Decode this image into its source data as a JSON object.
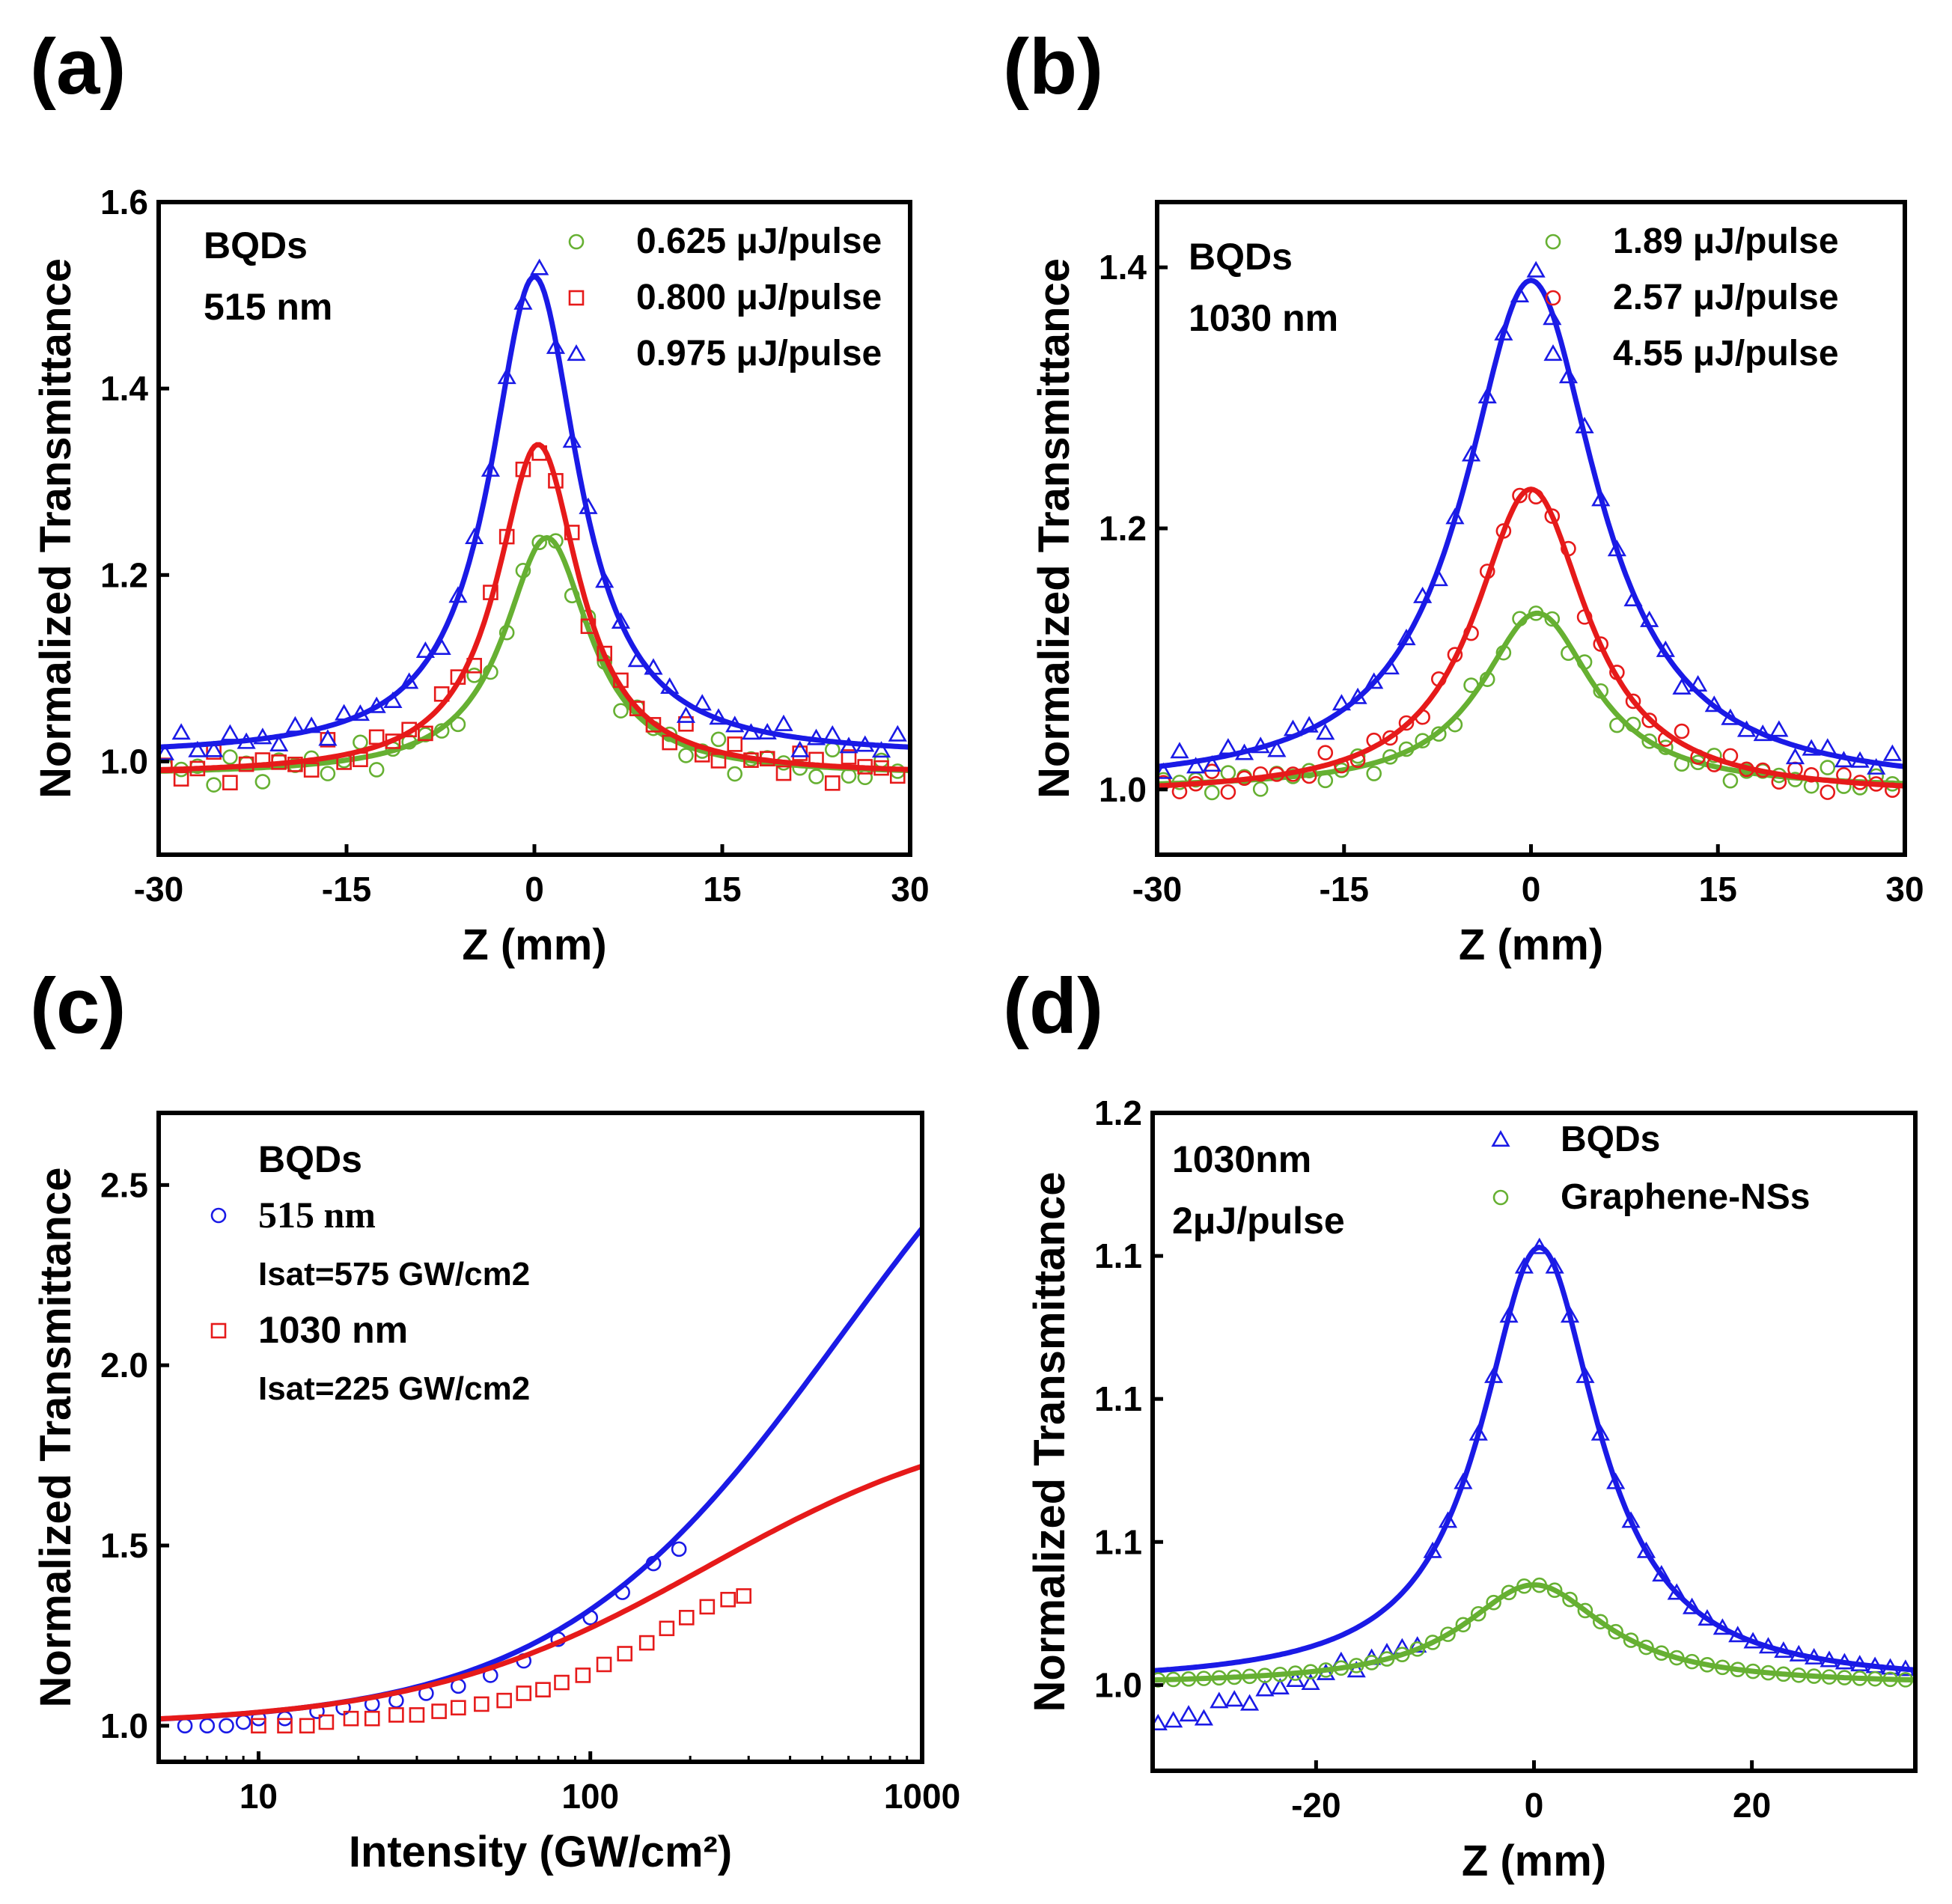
{
  "colors": {
    "blue": "#1a1ae6",
    "red": "#e61a1a",
    "green": "#66b032",
    "black": "#000000"
  },
  "chart_data": [
    {
      "panel": "(a)",
      "type": "scatter",
      "xlabel": "Z (mm)",
      "ylabel": "Normalized Transmittance",
      "xlim": [
        -30,
        30
      ],
      "ylim": [
        0.9,
        1.6
      ],
      "xticks": [
        -30,
        -15,
        0,
        15,
        30
      ],
      "xtick_labels": [
        "-30",
        "-15",
        "0",
        "15",
        "30"
      ],
      "yticks": [
        1.0,
        1.2,
        1.4,
        1.6
      ],
      "ytick_labels": [
        "1.0",
        "1.2",
        "1.4",
        "1.6"
      ],
      "notes": [
        "BQDs",
        "515 nm"
      ],
      "series": [
        {
          "name": "0.625 μJ/pulse",
          "marker": "circle",
          "color": "green",
          "peak": 1.24,
          "center": 1,
          "width": 4.2,
          "noise": 0.02,
          "base": 0.985
        },
        {
          "name": "0.800 μJ/pulse",
          "marker": "square",
          "color": "red",
          "peak": 1.34,
          "center": 0.3,
          "width": 4.0,
          "noise": 0.02,
          "base": 0.985
        },
        {
          "name": "0.975 μJ/pulse",
          "marker": "triangle",
          "color": "blue",
          "peak": 1.52,
          "center": 0,
          "width": 4.3,
          "noise": 0.015,
          "base": 1.005
        }
      ]
    },
    {
      "panel": "(b)",
      "type": "scatter",
      "xlabel": "Z (mm)",
      "ylabel": "Normalized Transmittance",
      "xlim": [
        -30,
        30
      ],
      "ylim": [
        0.95,
        1.45
      ],
      "xticks": [
        -30,
        -15,
        0,
        15,
        30
      ],
      "xtick_labels": [
        "-30",
        "-15",
        "0",
        "15",
        "30"
      ],
      "yticks": [
        1.0,
        1.2,
        1.4
      ],
      "ytick_labels": [
        "1.0",
        "1.2",
        "1.4"
      ],
      "notes": [
        "BQDs",
        "1030 nm"
      ],
      "series": [
        {
          "name": "1.89 μJ/pulse",
          "marker": "circle",
          "color": "green",
          "peak": 1.135,
          "center": 0.5,
          "width": 5.5,
          "noise": 0.01,
          "base": 1.0
        },
        {
          "name": "2.57 μJ/pulse",
          "marker": "circle",
          "color": "red",
          "peak": 1.23,
          "center": 0,
          "width": 5.5,
          "noise": 0.01,
          "base": 0.995
        },
        {
          "name": "4.55 μJ/pulse",
          "marker": "triangle",
          "color": "blue",
          "peak": 1.39,
          "center": 0,
          "width": 6.5,
          "noise": 0.01,
          "base": 1.0
        }
      ]
    },
    {
      "panel": "(c)",
      "type": "scatter",
      "xscale": "log",
      "xlabel": "Intensity (GW/cm²)",
      "ylabel": "Normalized Transmittance",
      "xlim": [
        5,
        1000
      ],
      "ylim": [
        0.9,
        2.7
      ],
      "xticks": [
        10,
        100,
        1000
      ],
      "xtick_labels": [
        "10",
        "100",
        "1000"
      ],
      "yticks": [
        1.0,
        1.5,
        2.0,
        2.5
      ],
      "ytick_labels": [
        "1.0",
        "1.5",
        "2.0",
        "2.5"
      ],
      "notes": [
        "BQDs"
      ],
      "series": [
        {
          "name": "515 nm",
          "sat_label": "Isat=575 GW/cm2",
          "marker": "circle",
          "color": "blue",
          "fit_end": 2.38,
          "data_x": [
            6,
            7,
            8,
            9,
            10,
            12,
            15,
            18,
            22,
            26,
            32,
            40,
            50,
            63,
            80,
            100,
            125,
            155,
            185
          ],
          "data_y": [
            1.0,
            1.0,
            1.0,
            1.01,
            1.02,
            1.02,
            1.04,
            1.05,
            1.06,
            1.07,
            1.09,
            1.11,
            1.14,
            1.18,
            1.24,
            1.3,
            1.37,
            1.45,
            1.49
          ]
        },
        {
          "name": "1030 nm",
          "sat_label": "Isat=225 GW/cm2",
          "marker": "square",
          "color": "red",
          "fit_end": 1.72,
          "data_x": [
            10,
            12,
            14,
            16,
            19,
            22,
            26,
            30,
            35,
            40,
            47,
            55,
            63,
            72,
            82,
            95,
            110,
            127,
            148,
            170,
            195,
            225,
            260,
            290
          ],
          "data_y": [
            1.0,
            1.0,
            1.0,
            1.01,
            1.02,
            1.02,
            1.03,
            1.03,
            1.04,
            1.05,
            1.06,
            1.07,
            1.09,
            1.1,
            1.12,
            1.14,
            1.17,
            1.2,
            1.23,
            1.27,
            1.3,
            1.33,
            1.35,
            1.36
          ]
        }
      ]
    },
    {
      "panel": "(d)",
      "type": "scatter",
      "xlabel": "Z (mm)",
      "ylabel": "Normalized Transmittance",
      "xlim": [
        -35,
        35
      ],
      "ylim": [
        0.97,
        1.2
      ],
      "xticks": [
        -20,
        0,
        20
      ],
      "xtick_labels": [
        "-20",
        "0",
        "20"
      ],
      "yticks": [
        1.0,
        1.05,
        1.1,
        1.15,
        1.2
      ],
      "ytick_labels": [
        "1.0",
        "1.1",
        "1.1",
        "1.1",
        "1.2"
      ],
      "notes": [
        "1030nm",
        "2μJ/pulse"
      ],
      "series": [
        {
          "name": "BQDs",
          "marker": "triangle",
          "color": "blue",
          "peak": 1.153,
          "center": 0.5,
          "width": 6.5,
          "noise": 0.0,
          "base": 1.0
        },
        {
          "name": "Graphene-NSs",
          "marker": "circle",
          "color": "green",
          "peak": 1.035,
          "center": 0,
          "width": 8.0,
          "noise": 0.0,
          "base": 1.0
        }
      ]
    }
  ]
}
